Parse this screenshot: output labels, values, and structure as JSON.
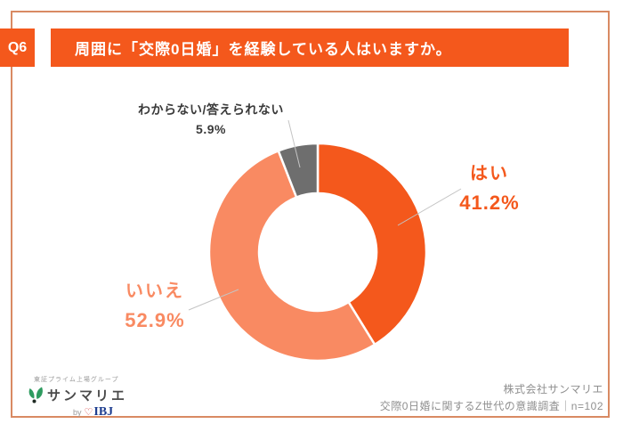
{
  "header": {
    "q_label": "Q6",
    "title": "周囲に「交際0日婚」を経験している人はいますか。"
  },
  "chart_data": {
    "type": "pie",
    "subtype": "donut",
    "labels": [
      "はい",
      "いいえ",
      "わからない/答えられない"
    ],
    "values": [
      41.2,
      52.9,
      5.9
    ],
    "value_labels": [
      "41.2%",
      "52.9%",
      "5.9%"
    ],
    "colors": [
      "#F4581C",
      "#F98A62",
      "#6E6E6E"
    ],
    "unit": "%",
    "start_angle_deg": 0,
    "direction": "clockwise",
    "legend_position": "callouts"
  },
  "footer": {
    "logo": {
      "group_text": "東証プライム上場グループ",
      "brand": "サンマリエ",
      "by_text": "by",
      "heart_glyph": "♡",
      "ibj_text": "IBJ"
    },
    "credit_line1": "株式会社サンマリエ",
    "credit_line2": "交際0日婚に関するZ世代の意識調査｜n=102"
  },
  "theme": {
    "accent_orange": "#F4581C",
    "salmon": "#F98A62",
    "slice_gray": "#6E6E6E",
    "page_border": "#D98A63",
    "label_dark": "#3A3A3A",
    "muted_text": "#8F8F8F",
    "leaf_green": "#2E9B5F",
    "ibj_blue": "#1D3D8F"
  }
}
